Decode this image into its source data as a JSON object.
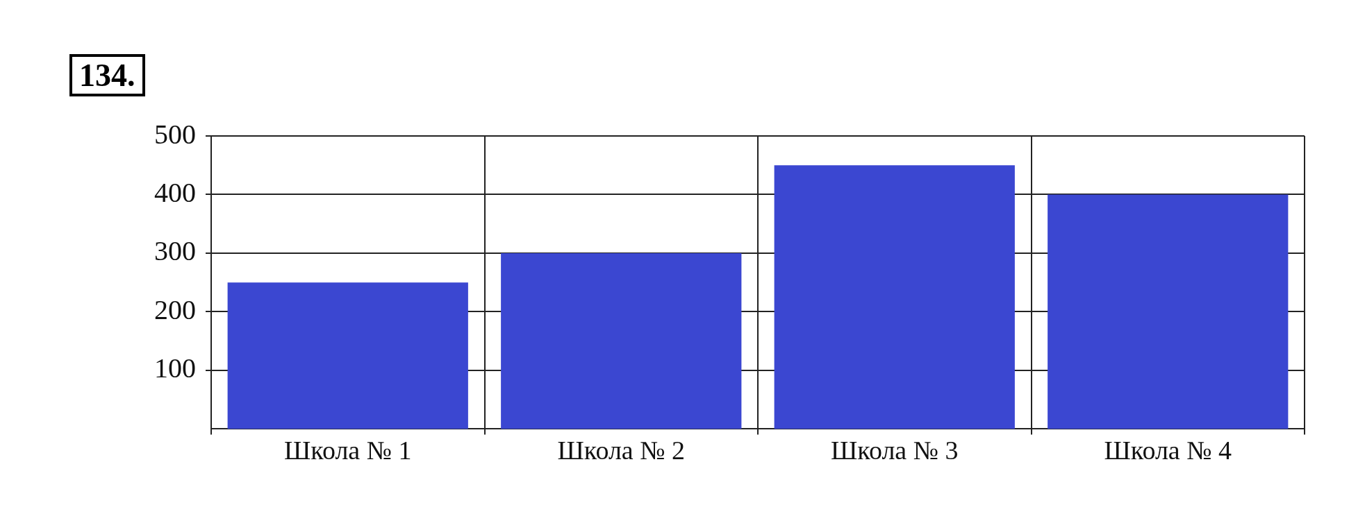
{
  "chart_data": {
    "type": "bar",
    "title": "134.",
    "categories": [
      "Школа № 1",
      "Школа № 2",
      "Школа № 3",
      "Школа № 4"
    ],
    "values": [
      250,
      300,
      450,
      400
    ],
    "color": "#3b47d1",
    "ylim": [
      0,
      500
    ],
    "yticks": [
      100,
      200,
      300,
      400,
      500
    ],
    "grid": true
  }
}
